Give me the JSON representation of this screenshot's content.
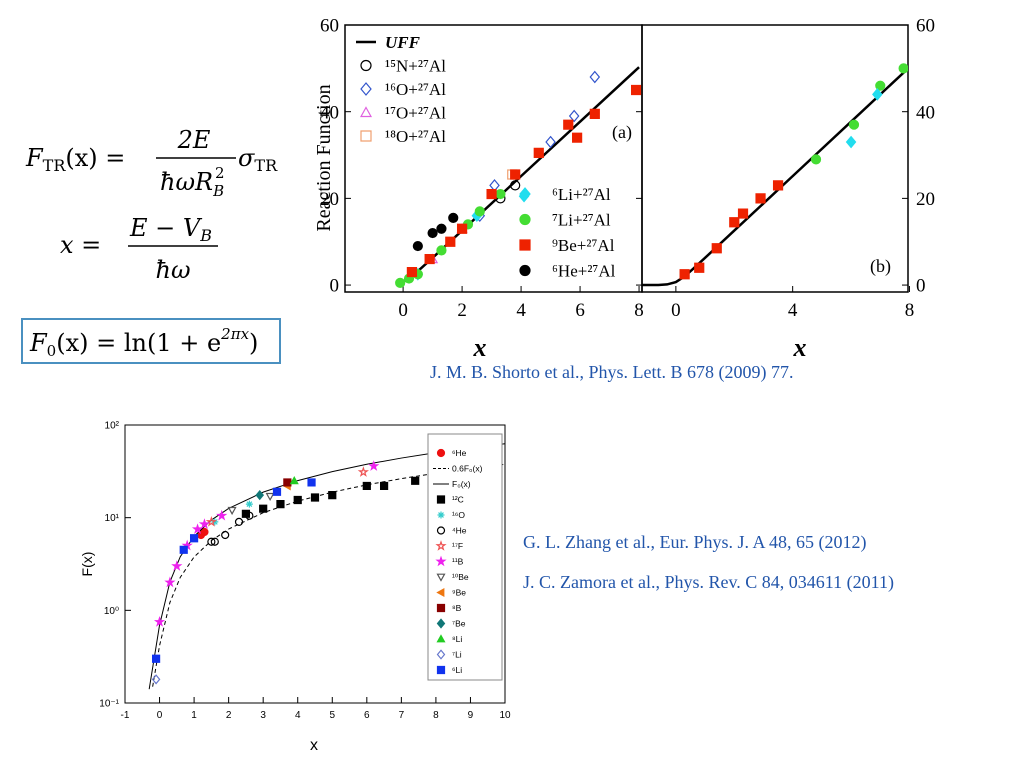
{
  "formulas": {
    "f1": {
      "lhs": "F",
      "lhs_sub": "TR",
      "lhs_rest": "(x) =",
      "num": "2E",
      "den": "ħωR",
      "den_sub": "B",
      "den_sup": "2",
      "rhs": "σ",
      "rhs_sub": "TR"
    },
    "f2": {
      "lhs": "x =",
      "num": "E − V",
      "num_sub": "B",
      "den": "ħω"
    },
    "f3": {
      "lhs": "F",
      "lhs_sub": "0",
      "lhs_rest": "(x) = ln(1 + e",
      "sup": "2πx",
      "end": ")"
    }
  },
  "citations": [
    "J. M. B. Shorto et al., Phys. Lett. B 678 (2009) 77.",
    "G. L. Zhang et al., Eur. Phys. J. A 48, 65 (2012)",
    "J. C. Zamora et al., Phys. Rev. C 84, 034611 (2011)"
  ],
  "chart_data": [
    {
      "type": "scatter",
      "label": "(a)",
      "ylabel": "Reaction Function",
      "xlabel": "x",
      "xlim": [
        -1.97,
        8.1
      ],
      "ylim": [
        -1.6,
        60
      ],
      "xticks": [
        0,
        2,
        4,
        6,
        8
      ],
      "yticks": [
        0,
        20,
        40,
        60
      ],
      "series": [
        {
          "name": "UFF",
          "type": "line",
          "style": "solid",
          "color": "#000000",
          "x": [
            0,
            0.5,
            1,
            2,
            4,
            6,
            8
          ],
          "values": [
            0.69,
            3.2,
            6.28,
            12.57,
            25.13,
            37.7,
            50.27
          ]
        },
        {
          "name": "¹⁵N+²⁷Al",
          "marker": "circle",
          "filled": false,
          "color": "#000000",
          "x": [
            3.3,
            3.8
          ],
          "values": [
            20,
            23
          ]
        },
        {
          "name": "¹⁶O+²⁷Al",
          "marker": "diamond",
          "filled": false,
          "color": "#3355cc",
          "x": [
            2.6,
            3.1,
            5.0,
            5.8,
            6.5
          ],
          "values": [
            16,
            23,
            33,
            39,
            48
          ]
        },
        {
          "name": "¹⁷O+²⁷Al",
          "marker": "triangle",
          "filled": false,
          "color": "#e060e0",
          "x": [
            1.0,
            2.0
          ],
          "values": [
            6,
            13
          ]
        },
        {
          "name": "¹⁸O+²⁷Al",
          "marker": "square",
          "filled": false,
          "color": "#f0a070",
          "x": [
            0.3,
            3.7
          ],
          "values": [
            3,
            25.5
          ]
        },
        {
          "name": "⁶Li+²⁷Al",
          "marker": "diamond",
          "filled": true,
          "color": "#22ddee",
          "x": [
            0.5,
            2.5,
            4.1
          ],
          "values": [
            2.5,
            16,
            20.5
          ]
        },
        {
          "name": "⁷Li+²⁷Al",
          "marker": "circle",
          "filled": true,
          "color": "#44dd33",
          "x": [
            -0.1,
            0.2,
            0.5,
            1.3,
            2.2,
            2.6,
            3.3
          ],
          "values": [
            0.5,
            1.5,
            2.5,
            8,
            14,
            17,
            21
          ]
        },
        {
          "name": "⁹Be+²⁷Al",
          "marker": "square",
          "filled": true,
          "color": "#ee2200",
          "x": [
            0.3,
            0.9,
            1.6,
            2,
            3,
            3.8,
            4.6,
            5.6,
            5.9,
            6.5,
            7.9
          ],
          "values": [
            3,
            6,
            10,
            13,
            21,
            25.5,
            30.5,
            37,
            34,
            39.5,
            45
          ]
        },
        {
          "name": "⁶He+²⁷Al",
          "marker": "circle",
          "filled": true,
          "color": "#000000",
          "x": [
            0.5,
            1,
            1.3,
            1.7
          ],
          "values": [
            9,
            12,
            13,
            15.5
          ]
        }
      ]
    },
    {
      "type": "scatter",
      "label": "(b)",
      "xlabel": "x",
      "xlim": [
        -1.16,
        7.95
      ],
      "ylim": [
        -1.6,
        60
      ],
      "xticks": [
        0,
        4,
        8
      ],
      "yticks": [
        0,
        20,
        40,
        60
      ],
      "series": [
        {
          "type": "line",
          "style": "solid",
          "color": "#000000",
          "x": [
            -1.2,
            -0.6,
            -0.3,
            0,
            0.3,
            0.6,
            1,
            2,
            4,
            6,
            8
          ],
          "values": [
            0,
            0.02,
            0.15,
            0.69,
            2.0,
            3.8,
            6.28,
            12.57,
            25.13,
            37.7,
            50.27
          ]
        },
        {
          "marker": "square",
          "filled": true,
          "color": "#ee2200",
          "x": [
            0.3,
            0.8,
            1.4,
            2.0,
            2.3,
            2.9,
            3.5
          ],
          "values": [
            2.5,
            4,
            8.5,
            14.5,
            16.5,
            20,
            23
          ]
        },
        {
          "marker": "circle",
          "filled": true,
          "color": "#44dd33",
          "x": [
            4.8,
            6.1,
            7.0,
            7.8
          ],
          "values": [
            29,
            37,
            46,
            50
          ]
        },
        {
          "marker": "diamond",
          "filled": true,
          "color": "#22ddee",
          "x": [
            6.0,
            6.9
          ],
          "values": [
            33,
            44
          ]
        }
      ]
    },
    {
      "type": "scatter",
      "ylabel": "F(x)",
      "xlabel": "x",
      "log_y": true,
      "legend": "upper right",
      "xlim": [
        -1,
        10
      ],
      "ylim": [
        0.1,
        100
      ],
      "xticks": [
        -1,
        0,
        1,
        2,
        3,
        4,
        5,
        6,
        7,
        8,
        9,
        10
      ],
      "yticks": [
        {
          "value": 0.1,
          "label": "10⁻¹"
        },
        {
          "value": 1,
          "label": "10⁰"
        },
        {
          "value": 10,
          "label": "10¹"
        },
        {
          "value": 100,
          "label": "10²"
        }
      ],
      "series": [
        {
          "name": "⁶He",
          "marker": "circle",
          "filled": true,
          "color": "#ee1111",
          "x": [
            1.2,
            1.3
          ],
          "values": [
            6.5,
            7
          ]
        },
        {
          "name": "0.6F₀(x)",
          "type": "line",
          "style": "dashed",
          "color": "#000000",
          "x": [
            -0.2,
            0,
            0.3,
            0.6,
            1,
            1.5,
            2,
            3,
            4,
            5,
            6,
            7,
            8,
            9,
            10
          ],
          "values": [
            0.15,
            0.416,
            1.216,
            2.27,
            3.77,
            5.65,
            7.54,
            11.31,
            15.08,
            18.85,
            22.62,
            26.39,
            30.16,
            33.93,
            37.7
          ]
        },
        {
          "name": "F₀(x)",
          "type": "line",
          "style": "solid",
          "color": "#000000",
          "x": [
            -0.3,
            0,
            0.3,
            0.6,
            1,
            1.5,
            2,
            3,
            4,
            5,
            6,
            7,
            8,
            9,
            10
          ],
          "values": [
            0.141,
            0.693,
            2.027,
            3.79,
            6.285,
            9.425,
            12.566,
            18.85,
            25.13,
            31.42,
            37.7,
            43.98,
            50.27,
            56.55,
            62.83
          ]
        },
        {
          "name": "¹²C",
          "marker": "square",
          "filled": true,
          "color": "#000000",
          "x": [
            2.5,
            3,
            3.5,
            4,
            4.5,
            5,
            6,
            6.5,
            7.4,
            8.5
          ],
          "values": [
            11,
            12.5,
            14,
            15.5,
            16.5,
            17.5,
            22,
            22,
            25,
            27
          ]
        },
        {
          "name": "¹⁶O",
          "marker": "asterisk",
          "filled": false,
          "color": "#33cccc",
          "x": [
            1.6,
            2.6
          ],
          "values": [
            9,
            14
          ]
        },
        {
          "name": "⁴He",
          "marker": "circle",
          "filled": false,
          "color": "#000000",
          "x": [
            1.5,
            1.6,
            1.9,
            2.3,
            2.6
          ],
          "values": [
            5.5,
            5.5,
            6.5,
            9,
            10.5
          ]
        },
        {
          "name": "¹⁷F",
          "marker": "star",
          "filled": false,
          "color": "#ee5555",
          "x": [
            1.5,
            5.9
          ],
          "values": [
            9,
            31
          ]
        },
        {
          "name": "¹¹B",
          "marker": "star",
          "filled": true,
          "color": "#ee22ee",
          "x": [
            0,
            0.3,
            0.5,
            0.8,
            1.1,
            1.3,
            1.8,
            6.2
          ],
          "values": [
            0.75,
            2,
            3,
            5,
            7.5,
            8.5,
            10.5,
            36
          ]
        },
        {
          "name": "¹⁰Be",
          "marker": "triangle-down",
          "filled": false,
          "color": "#555555",
          "x": [
            2.1,
            3.2
          ],
          "values": [
            12,
            17
          ]
        },
        {
          "name": "⁹Be",
          "marker": "triangle-left",
          "filled": true,
          "color": "#ee7711",
          "x": [
            3.7
          ],
          "values": [
            22
          ]
        },
        {
          "name": "⁸B",
          "marker": "square",
          "filled": true,
          "color": "#880000",
          "x": [
            3.7
          ],
          "values": [
            24
          ]
        },
        {
          "name": "⁷Be",
          "marker": "diamond",
          "filled": true,
          "color": "#117777",
          "x": [
            2.9
          ],
          "values": [
            17.5
          ]
        },
        {
          "name": "⁸Li",
          "marker": "triangle",
          "filled": true,
          "color": "#22cc22",
          "x": [
            3.9
          ],
          "values": [
            25
          ]
        },
        {
          "name": "⁷Li",
          "marker": "diamond",
          "filled": false,
          "color": "#6677cc",
          "x": [
            -0.1
          ],
          "values": [
            0.18
          ]
        },
        {
          "name": "⁶Li",
          "marker": "square",
          "filled": true,
          "color": "#1133ee",
          "x": [
            -0.1,
            0.7,
            1,
            3.4,
            4.4
          ],
          "values": [
            0.3,
            4.5,
            6,
            19,
            24
          ]
        }
      ]
    }
  ]
}
